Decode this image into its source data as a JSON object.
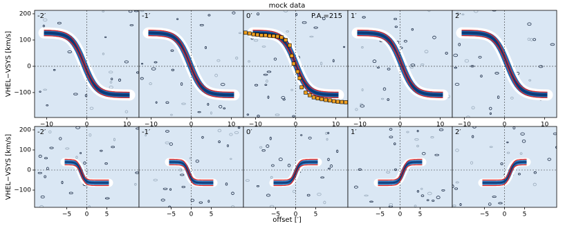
{
  "title": "mock data",
  "xlabel": "offset [′]",
  "chart_data": [
    {
      "type": "pv",
      "label": "-2′",
      "ylabel": "VHEL−VSYS [km/s]",
      "xlim": [
        -13,
        13
      ],
      "ylim": [
        -195,
        213
      ],
      "xticks": [
        {
          "value": -10,
          "label": "−10"
        },
        0,
        10
      ],
      "yticks": [
        {
          "value": -100,
          "label": "−100"
        },
        0,
        100,
        200
      ]
    },
    {
      "type": "pv",
      "label": "-1′",
      "xlim": [
        -13,
        13
      ],
      "ylim": [
        -195,
        213
      ],
      "xticks": [
        {
          "value": -10,
          "label": "−10"
        },
        0,
        10
      ]
    },
    {
      "type": "pv",
      "label": "0′",
      "annotation": "P.A.=215",
      "xlim": [
        -13,
        13
      ],
      "ylim": [
        -195,
        213
      ],
      "xticks": [
        {
          "value": -10,
          "label": "−10"
        },
        0,
        10
      ],
      "series": [
        {
          "color": "#f0a020",
          "x": [
            -12.5,
            -11.5,
            -10.5,
            -9.5,
            -8.5,
            -7.5,
            -6.5,
            -5.5,
            -4.5,
            -3.5,
            -2.5,
            -1.5,
            -1,
            -0.5,
            0.5,
            1,
            1.5,
            2.5,
            3.5,
            4.5,
            5.5,
            6.5,
            7.5,
            8.5,
            9.5,
            10.5,
            11.5,
            12.5
          ],
          "values": [
            128,
            125,
            122,
            120,
            118,
            118,
            116,
            115,
            114,
            110,
            100,
            80,
            40,
            10,
            -20,
            -45,
            -80,
            -100,
            -110,
            -118,
            -122,
            -125,
            -128,
            -130,
            -133,
            -135,
            -136,
            -137
          ]
        }
      ]
    },
    {
      "type": "pv",
      "label": "1′",
      "xlim": [
        -13,
        13
      ],
      "ylim": [
        -195,
        213
      ],
      "xticks": [
        {
          "value": -10,
          "label": "−10"
        },
        0,
        10
      ]
    },
    {
      "type": "pv",
      "label": "2′",
      "xlim": [
        -13,
        13
      ],
      "ylim": [
        -195,
        213
      ],
      "xticks": [
        {
          "value": -10,
          "label": "−10"
        },
        0,
        10
      ]
    },
    {
      "type": "pv",
      "label": "-2′",
      "ylabel": "VHEL−VSYS [km/s]",
      "xlim": [
        -13,
        13
      ],
      "ylim": [
        -186,
        217
      ],
      "xticks": [
        {
          "value": -5,
          "label": "−5"
        },
        0,
        5
      ],
      "yticks": [
        {
          "value": -100,
          "label": "−100"
        },
        0,
        100,
        200
      ]
    },
    {
      "type": "pv",
      "label": "-1′",
      "xlim": [
        -13,
        13
      ],
      "ylim": [
        -186,
        217
      ],
      "xticks": [
        {
          "value": -5,
          "label": "−5"
        },
        0,
        5
      ]
    },
    {
      "type": "pv",
      "label": "0′",
      "xlim": [
        -13,
        13
      ],
      "ylim": [
        -186,
        217
      ],
      "xticks": [
        {
          "value": -5,
          "label": "−5"
        },
        0,
        5
      ]
    },
    {
      "type": "pv",
      "label": "1′",
      "xlim": [
        -13,
        13
      ],
      "ylim": [
        -186,
        217
      ],
      "xticks": [
        {
          "value": -5,
          "label": "−5"
        },
        0,
        5
      ]
    },
    {
      "type": "pv",
      "label": "2′",
      "xlim": [
        -13,
        13
      ],
      "ylim": [
        -186,
        217
      ],
      "xticks": [
        {
          "value": -5,
          "label": "−5"
        },
        0,
        5
      ]
    }
  ]
}
